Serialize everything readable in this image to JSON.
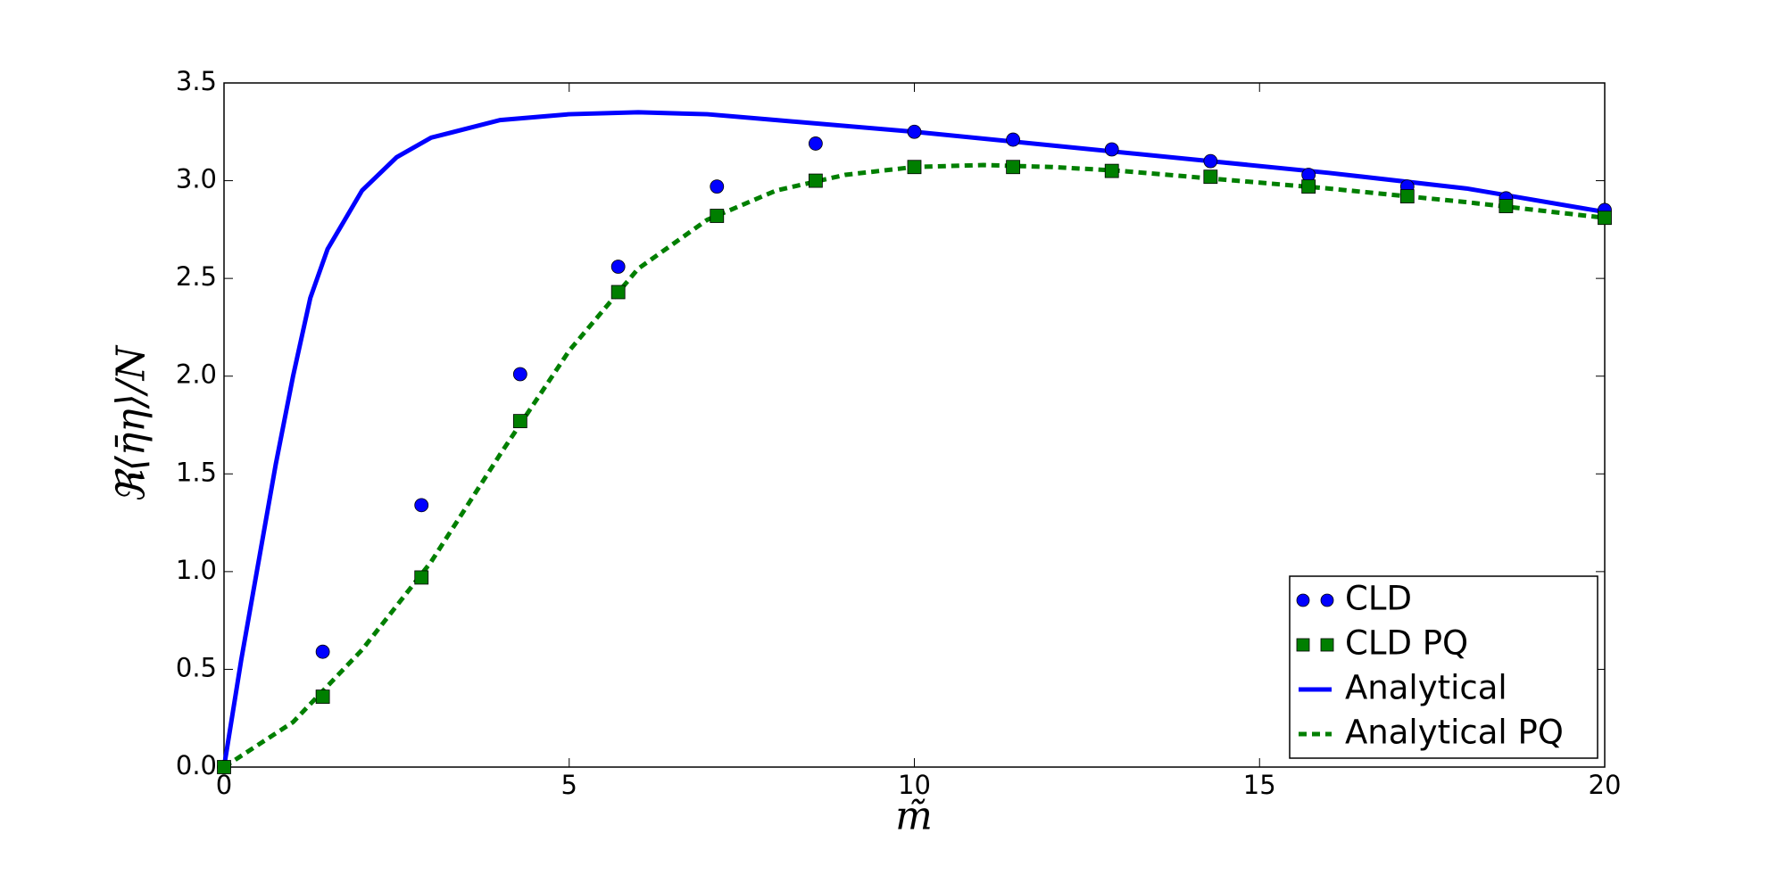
{
  "chart_data": {
    "type": "line",
    "xlabel": "m̃",
    "ylabel": "ℜ⟨η̄η⟩/N",
    "xlim": [
      0,
      20
    ],
    "ylim": [
      0,
      3.5
    ],
    "xticks": [
      0,
      5,
      10,
      15,
      20
    ],
    "yticks": [
      {
        "value": 0,
        "label": "0.0"
      },
      {
        "value": 0.5,
        "label": "0.5"
      },
      {
        "value": 1,
        "label": "1.0"
      },
      {
        "value": 1.5,
        "label": "1.5"
      },
      {
        "value": 2,
        "label": "2.0"
      },
      {
        "value": 2.5,
        "label": "2.5"
      },
      {
        "value": 3,
        "label": "3.0"
      },
      {
        "value": 3.5,
        "label": "3.5"
      }
    ],
    "legend": "lower right",
    "series": [
      {
        "name": "CLD",
        "type": "scatter",
        "marker": "circle",
        "color": "#0000ff",
        "x": [
          0,
          1.43,
          2.86,
          4.29,
          5.71,
          7.14,
          8.57,
          10,
          11.43,
          12.86,
          14.29,
          15.71,
          17.14,
          18.57,
          20
        ],
        "values": [
          0,
          0.59,
          1.34,
          2.01,
          2.56,
          2.97,
          3.19,
          3.25,
          3.21,
          3.16,
          3.1,
          3.03,
          2.97,
          2.91,
          2.85
        ]
      },
      {
        "name": "CLD PQ",
        "type": "scatter",
        "marker": "square",
        "color": "#007f00",
        "x": [
          0,
          1.43,
          2.86,
          4.29,
          5.71,
          7.14,
          8.57,
          10,
          11.43,
          12.86,
          14.29,
          15.71,
          17.14,
          18.57,
          20
        ],
        "values": [
          0,
          0.36,
          0.97,
          1.77,
          2.43,
          2.82,
          3.0,
          3.07,
          3.07,
          3.05,
          3.02,
          2.97,
          2.92,
          2.87,
          2.81
        ]
      },
      {
        "name": "Analytical",
        "type": "line",
        "dash": false,
        "color": "#0000ff",
        "x": [
          0,
          0.25,
          0.5,
          0.75,
          1,
          1.25,
          1.5,
          2,
          2.5,
          3,
          4,
          5,
          6,
          7,
          8,
          10,
          12,
          14,
          16,
          18,
          20
        ],
        "values": [
          0,
          0.55,
          1.05,
          1.55,
          2.0,
          2.4,
          2.65,
          2.95,
          3.12,
          3.22,
          3.31,
          3.34,
          3.35,
          3.34,
          3.31,
          3.25,
          3.18,
          3.11,
          3.04,
          2.96,
          2.84
        ]
      },
      {
        "name": "Analytical PQ",
        "type": "line",
        "dash": true,
        "color": "#007f00",
        "x": [
          0,
          1,
          2,
          3,
          4,
          5,
          6,
          7,
          8,
          9,
          10,
          11,
          12,
          13,
          14,
          16,
          18,
          20
        ],
        "values": [
          0,
          0.23,
          0.6,
          1.05,
          1.6,
          2.13,
          2.55,
          2.8,
          2.95,
          3.03,
          3.07,
          3.08,
          3.07,
          3.05,
          3.02,
          2.96,
          2.89,
          2.81
        ]
      }
    ]
  }
}
